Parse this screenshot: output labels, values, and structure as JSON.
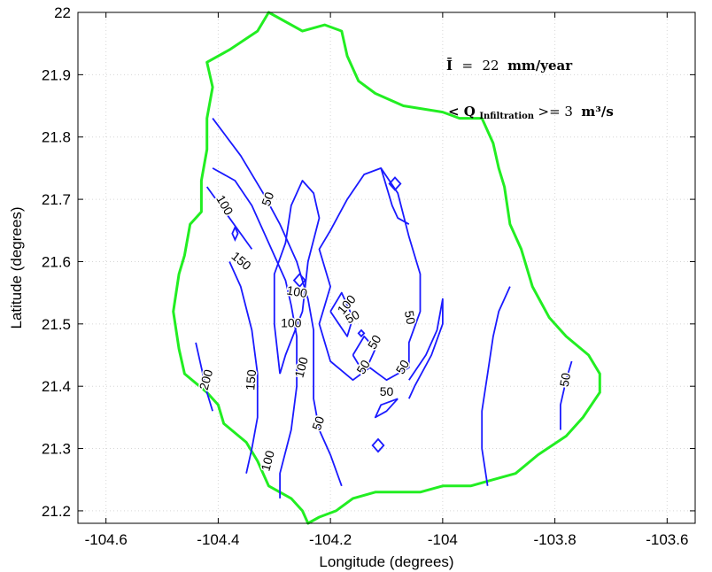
{
  "chart_data": {
    "type": "contour",
    "title": "",
    "xlabel": "Longitude (degrees)",
    "ylabel": "Latitude (degrees)",
    "xlim": [
      -104.65,
      -103.55
    ],
    "ylim": [
      21.18,
      22.0
    ],
    "xticks": [
      -104.6,
      -104.4,
      -104.2,
      -104,
      -103.8,
      -103.6
    ],
    "xtick_labels": [
      "-104.6",
      "-104.4",
      "-104.2",
      "-104",
      "-103.8",
      "-103.6"
    ],
    "yticks": [
      21.2,
      21.3,
      21.4,
      21.5,
      21.6,
      21.7,
      21.8,
      21.9,
      22.0
    ],
    "ytick_labels": [
      "21.2",
      "21.3",
      "21.4",
      "21.5",
      "21.6",
      "21.7",
      "21.8",
      "21.9",
      "22"
    ],
    "grid": true,
    "colors": {
      "contour": "#1a1aff",
      "boundary": "#22ee22"
    },
    "annotation": {
      "line1_symbol": "Ī",
      "line1_eq": "=",
      "line1_value": "22",
      "line1_unit": "mm/year",
      "line2_prefix": "< Q",
      "line2_subscript": "Infiltration",
      "line2_suffix": ">= 3",
      "line2_unit": "m³/s"
    },
    "boundary": [
      [
        -104.24,
        21.18
      ],
      [
        -104.25,
        21.2
      ],
      [
        -104.27,
        21.22
      ],
      [
        -104.31,
        21.24
      ],
      [
        -104.33,
        21.28
      ],
      [
        -104.35,
        21.31
      ],
      [
        -104.39,
        21.34
      ],
      [
        -104.4,
        21.37
      ],
      [
        -104.42,
        21.39
      ],
      [
        -104.46,
        21.42
      ],
      [
        -104.47,
        21.46
      ],
      [
        -104.48,
        21.52
      ],
      [
        -104.47,
        21.58
      ],
      [
        -104.46,
        21.61
      ],
      [
        -104.45,
        21.66
      ],
      [
        -104.43,
        21.68
      ],
      [
        -104.43,
        21.73
      ],
      [
        -104.42,
        21.78
      ],
      [
        -104.42,
        21.83
      ],
      [
        -104.41,
        21.88
      ],
      [
        -104.42,
        21.92
      ],
      [
        -104.38,
        21.94
      ],
      [
        -104.33,
        21.97
      ],
      [
        -104.31,
        22.0
      ],
      [
        -104.29,
        21.99
      ],
      [
        -104.25,
        21.97
      ],
      [
        -104.21,
        21.98
      ],
      [
        -104.18,
        21.97
      ],
      [
        -104.17,
        21.93
      ],
      [
        -104.15,
        21.89
      ],
      [
        -104.12,
        21.87
      ],
      [
        -104.07,
        21.85
      ],
      [
        -104.0,
        21.84
      ],
      [
        -103.97,
        21.83
      ],
      [
        -103.93,
        21.83
      ],
      [
        -103.91,
        21.79
      ],
      [
        -103.9,
        21.75
      ],
      [
        -103.89,
        21.72
      ],
      [
        -103.88,
        21.66
      ],
      [
        -103.86,
        21.62
      ],
      [
        -103.84,
        21.56
      ],
      [
        -103.81,
        21.51
      ],
      [
        -103.78,
        21.48
      ],
      [
        -103.74,
        21.45
      ],
      [
        -103.72,
        21.42
      ],
      [
        -103.72,
        21.39
      ],
      [
        -103.75,
        21.35
      ],
      [
        -103.78,
        21.32
      ],
      [
        -103.83,
        21.29
      ],
      [
        -103.87,
        21.26
      ],
      [
        -103.91,
        21.25
      ],
      [
        -103.95,
        21.24
      ],
      [
        -104.0,
        21.24
      ],
      [
        -104.04,
        21.23
      ],
      [
        -104.08,
        21.23
      ],
      [
        -104.12,
        21.23
      ],
      [
        -104.16,
        21.22
      ],
      [
        -104.19,
        21.2
      ],
      [
        -104.22,
        21.19
      ],
      [
        -104.24,
        21.18
      ]
    ],
    "contours": [
      {
        "level": "200",
        "points": [
          [
            -104.44,
            21.47
          ],
          [
            -104.43,
            21.43
          ],
          [
            -104.42,
            21.39
          ],
          [
            -104.41,
            21.36
          ]
        ]
      },
      {
        "level": "150",
        "points": [
          [
            -104.35,
            21.26
          ],
          [
            -104.34,
            21.3
          ],
          [
            -104.33,
            21.35
          ],
          [
            -104.33,
            21.42
          ],
          [
            -104.34,
            21.49
          ],
          [
            -104.36,
            21.56
          ],
          [
            -104.38,
            21.6
          ]
        ]
      },
      {
        "level": "150",
        "points": [
          [
            -104.34,
            21.62
          ],
          [
            -104.38,
            21.67
          ],
          [
            -104.42,
            21.72
          ]
        ]
      },
      {
        "level": "100",
        "points": [
          [
            -104.29,
            21.22
          ],
          [
            -104.29,
            21.26
          ],
          [
            -104.27,
            21.33
          ],
          [
            -104.26,
            21.4
          ],
          [
            -104.26,
            21.48
          ],
          [
            -104.27,
            21.53
          ],
          [
            -104.28,
            21.57
          ],
          [
            -104.31,
            21.63
          ],
          [
            -104.34,
            21.69
          ],
          [
            -104.37,
            21.73
          ],
          [
            -104.41,
            21.75
          ]
        ]
      },
      {
        "level": "50",
        "points": [
          [
            -104.18,
            21.24
          ],
          [
            -104.2,
            21.29
          ],
          [
            -104.22,
            21.33
          ],
          [
            -104.23,
            21.38
          ],
          [
            -104.23,
            21.43
          ],
          [
            -104.23,
            21.49
          ],
          [
            -104.24,
            21.54
          ],
          [
            -104.26,
            21.6
          ],
          [
            -104.29,
            21.66
          ],
          [
            -104.32,
            21.71
          ],
          [
            -104.36,
            21.77
          ],
          [
            -104.41,
            21.83
          ]
        ]
      },
      {
        "level": "50",
        "points": [
          [
            -103.79,
            21.33
          ],
          [
            -103.79,
            21.37
          ],
          [
            -103.78,
            21.41
          ],
          [
            -103.77,
            21.44
          ]
        ]
      },
      {
        "level": "",
        "points": [
          [
            -103.92,
            21.24
          ],
          [
            -103.93,
            21.3
          ],
          [
            -103.93,
            21.36
          ],
          [
            -103.92,
            21.42
          ],
          [
            -103.91,
            21.48
          ],
          [
            -103.9,
            21.52
          ],
          [
            -103.88,
            21.56
          ]
        ]
      },
      {
        "level": "",
        "points": [
          [
            -104.21,
            21.53
          ],
          [
            -104.2,
            21.56
          ],
          [
            -104.22,
            21.62
          ],
          [
            -104.2,
            21.65
          ],
          [
            -104.17,
            21.7
          ],
          [
            -104.14,
            21.74
          ],
          [
            -104.11,
            21.75
          ],
          [
            -104.08,
            21.71
          ],
          [
            -104.06,
            21.64
          ],
          [
            -104.04,
            21.58
          ],
          [
            -104.04,
            21.52
          ],
          [
            -104.06,
            21.47
          ],
          [
            -104.06,
            21.43
          ],
          [
            -104.1,
            21.41
          ],
          [
            -104.13,
            21.43
          ],
          [
            -104.16,
            21.41
          ],
          [
            -104.2,
            21.44
          ],
          [
            -104.22,
            21.5
          ],
          [
            -104.21,
            21.53
          ]
        ]
      },
      {
        "level": "",
        "points": [
          [
            -104.11,
            21.75
          ],
          [
            -104.09,
            21.69
          ],
          [
            -104.08,
            21.67
          ],
          [
            -104.06,
            21.66
          ]
        ]
      },
      {
        "level": "",
        "points": [
          [
            -104.06,
            21.41
          ],
          [
            -104.03,
            21.45
          ],
          [
            -104.01,
            21.49
          ],
          [
            -104.0,
            21.54
          ],
          [
            -104.0,
            21.5
          ],
          [
            -104.02,
            21.45
          ],
          [
            -104.05,
            21.4
          ],
          [
            -104.06,
            21.38
          ]
        ]
      },
      {
        "level": "",
        "points": [
          [
            -104.08,
            21.38
          ],
          [
            -104.11,
            21.37
          ],
          [
            -104.12,
            21.35
          ],
          [
            -104.1,
            21.36
          ],
          [
            -104.08,
            21.38
          ]
        ]
      },
      {
        "level": "",
        "points": [
          [
            -104.2,
            21.52
          ],
          [
            -104.18,
            21.55
          ],
          [
            -104.16,
            21.51
          ],
          [
            -104.17,
            21.48
          ],
          [
            -104.2,
            21.52
          ]
        ]
      },
      {
        "level": "",
        "points": [
          [
            -104.16,
            21.45
          ],
          [
            -104.14,
            21.48
          ],
          [
            -104.12,
            21.46
          ],
          [
            -104.14,
            21.42
          ],
          [
            -104.16,
            21.45
          ]
        ]
      },
      {
        "level": "",
        "points": [
          [
            -104.29,
            21.42
          ],
          [
            -104.3,
            21.5
          ],
          [
            -104.3,
            21.58
          ],
          [
            -104.28,
            21.63
          ],
          [
            -104.27,
            21.69
          ],
          [
            -104.25,
            21.73
          ],
          [
            -104.23,
            21.71
          ],
          [
            -104.22,
            21.67
          ],
          [
            -104.24,
            21.6
          ],
          [
            -104.25,
            21.52
          ],
          [
            -104.28,
            21.45
          ],
          [
            -104.29,
            21.42
          ]
        ]
      }
    ],
    "closed_shapes": [
      {
        "level": "",
        "points": [
          [
            -104.095,
            21.725
          ],
          [
            -104.085,
            21.735
          ],
          [
            -104.075,
            21.725
          ],
          [
            -104.085,
            21.715
          ]
        ]
      },
      {
        "level": "",
        "points": [
          [
            -104.375,
            21.645
          ],
          [
            -104.37,
            21.655
          ],
          [
            -104.365,
            21.645
          ],
          [
            -104.37,
            21.635
          ]
        ]
      },
      {
        "level": "",
        "points": [
          [
            -104.265,
            21.57
          ],
          [
            -104.255,
            21.58
          ],
          [
            -104.245,
            21.57
          ],
          [
            -104.255,
            21.56
          ]
        ]
      },
      {
        "level": "",
        "points": [
          [
            -104.125,
            21.305
          ],
          [
            -104.115,
            21.315
          ],
          [
            -104.105,
            21.305
          ],
          [
            -104.115,
            21.295
          ]
        ]
      },
      {
        "level": "",
        "points": [
          [
            -104.15,
            21.485
          ],
          [
            -104.145,
            21.49
          ],
          [
            -104.14,
            21.485
          ],
          [
            -104.145,
            21.48
          ]
        ]
      }
    ],
    "contour_labels": [
      {
        "text": "200",
        "x": -104.42,
        "y": 21.41,
        "angle": -75
      },
      {
        "text": "150",
        "x": -104.34,
        "y": 21.41,
        "angle": -85
      },
      {
        "text": "150",
        "x": -104.36,
        "y": 21.6,
        "angle": 40
      },
      {
        "text": "100",
        "x": -104.39,
        "y": 21.69,
        "angle": 60
      },
      {
        "text": "100",
        "x": -104.31,
        "y": 21.28,
        "angle": -75
      },
      {
        "text": "100",
        "x": -104.26,
        "y": 21.55,
        "angle": 10
      },
      {
        "text": "100",
        "x": -104.27,
        "y": 21.5,
        "angle": 0
      },
      {
        "text": "100",
        "x": -104.25,
        "y": 21.43,
        "angle": -75
      },
      {
        "text": "100",
        "x": -104.17,
        "y": 21.53,
        "angle": -50
      },
      {
        "text": "50",
        "x": -104.31,
        "y": 21.7,
        "angle": -70
      },
      {
        "text": "50",
        "x": -104.22,
        "y": 21.34,
        "angle": -70
      },
      {
        "text": "50",
        "x": -104.16,
        "y": 21.51,
        "angle": -30
      },
      {
        "text": "50",
        "x": -104.12,
        "y": 21.47,
        "angle": -60
      },
      {
        "text": "50",
        "x": -104.14,
        "y": 21.43,
        "angle": -60
      },
      {
        "text": "50",
        "x": -104.1,
        "y": 21.39,
        "angle": 0
      },
      {
        "text": "50",
        "x": -104.07,
        "y": 21.43,
        "angle": -60
      },
      {
        "text": "50",
        "x": -104.06,
        "y": 21.51,
        "angle": 80
      },
      {
        "text": "50",
        "x": -103.78,
        "y": 21.41,
        "angle": -80
      }
    ]
  }
}
